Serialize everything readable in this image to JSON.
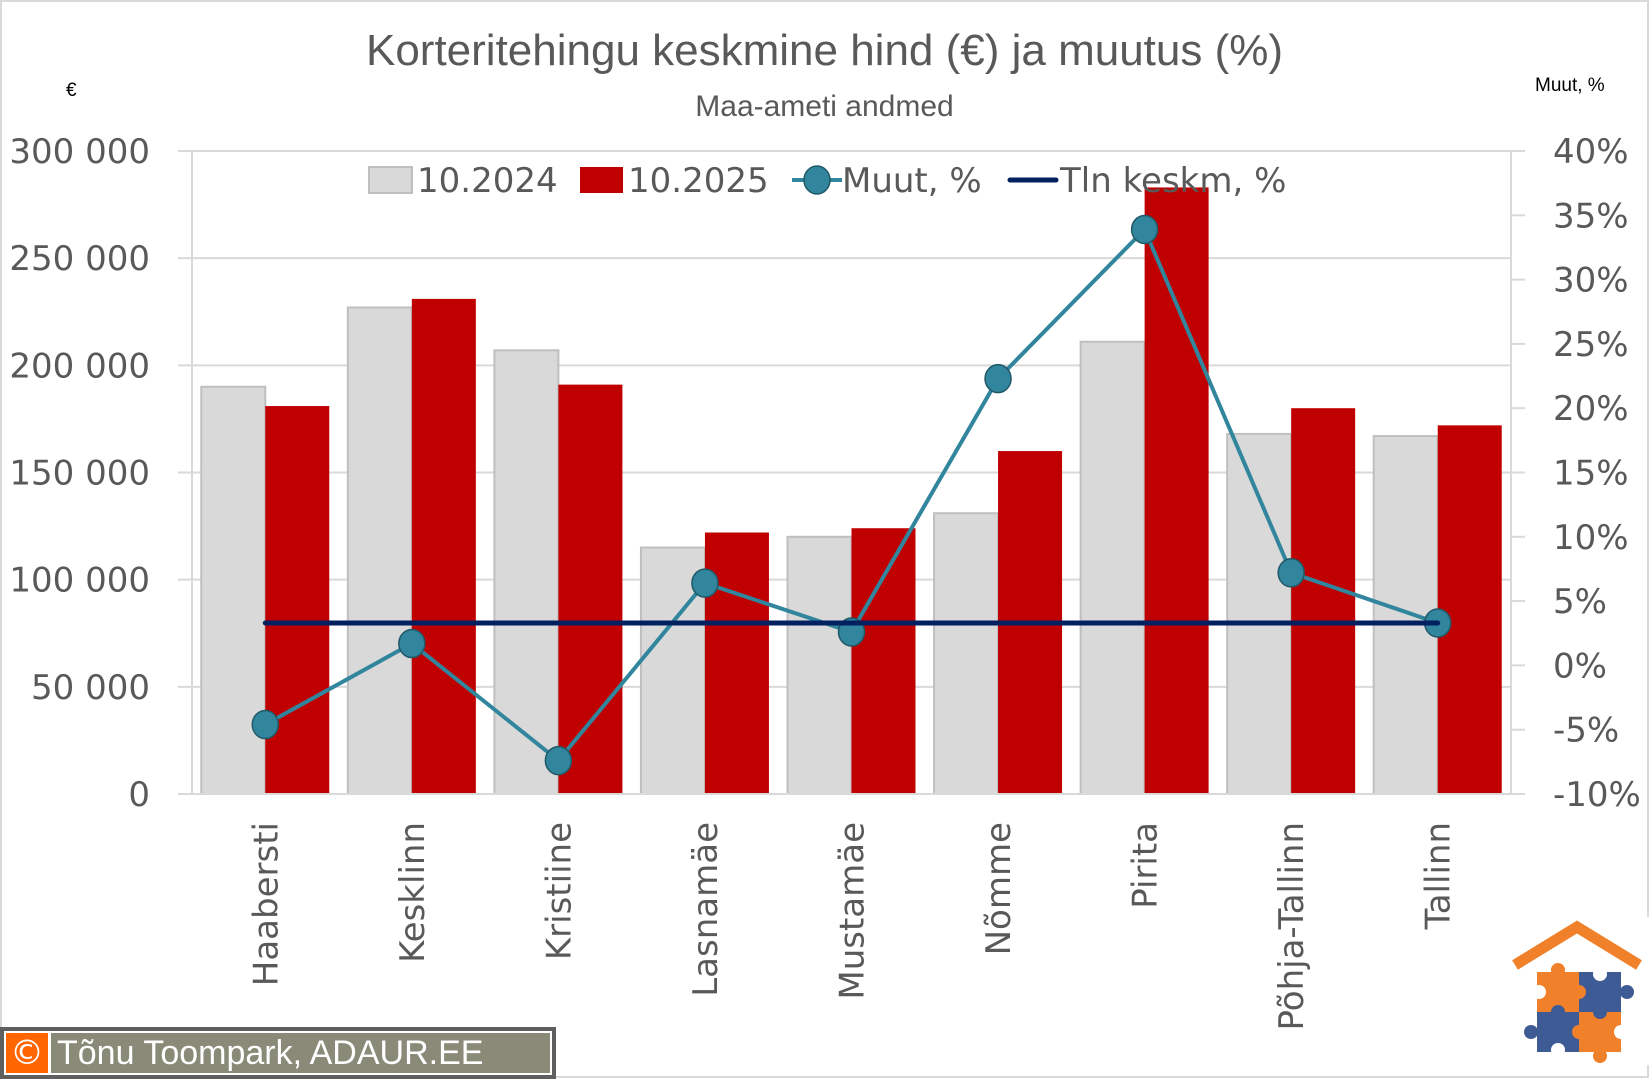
{
  "chart_data": {
    "type": "bar+line",
    "title": "Korteritehingu keskmine hind (€) ja muutus (%)",
    "subtitle": "Maa-ameti andmed",
    "ylabel": "€",
    "y2label": "Muut, %",
    "categories": [
      "Haabersti",
      "Kesklinn",
      "Kristiine",
      "Lasnamäe",
      "Mustamäe",
      "Nõmme",
      "Pirita",
      "Põhja-Tallinn",
      "Tallinn"
    ],
    "series": [
      {
        "name": "10.2024",
        "type": "bar",
        "axis": "left",
        "color": "#d9d9d9",
        "values": [
          190000,
          227000,
          207000,
          115000,
          120000,
          131000,
          211000,
          168000,
          167000
        ]
      },
      {
        "name": "10.2025",
        "type": "bar",
        "axis": "left",
        "color": "#c00000",
        "values": [
          181000,
          231000,
          191000,
          122000,
          124000,
          160000,
          283000,
          180000,
          172000
        ]
      },
      {
        "name": "Muut, %",
        "type": "line",
        "axis": "right",
        "color": "#31859c",
        "marker": "circle",
        "values": [
          -4.6,
          1.7,
          -7.4,
          6.4,
          2.6,
          22.3,
          33.9,
          7.2,
          3.3
        ]
      },
      {
        "name": "Tln keskm, %",
        "type": "line",
        "axis": "right",
        "color": "#002060",
        "marker": "none",
        "values": [
          3.3,
          3.3,
          3.3,
          3.3,
          3.3,
          3.3,
          3.3,
          3.3,
          3.3
        ]
      }
    ],
    "ylim": [
      0,
      300000
    ],
    "y2lim": [
      -10,
      40
    ],
    "yticks": [
      "0",
      "50 000",
      "100 000",
      "150 000",
      "200 000",
      "250 000",
      "300 000"
    ],
    "y2ticks": [
      "-10%",
      "-5%",
      "0%",
      "5%",
      "10%",
      "15%",
      "20%",
      "25%",
      "30%",
      "35%",
      "40%"
    ],
    "grid": true,
    "legend_position": "top-inside"
  },
  "credit": {
    "symbol": "©",
    "text": "Tõnu Toompark, ADAUR.EE"
  },
  "logo": {
    "name": "ADAUR puzzle house logo",
    "colors": {
      "orange": "#f0812a",
      "blue": "#3f5b95"
    }
  }
}
